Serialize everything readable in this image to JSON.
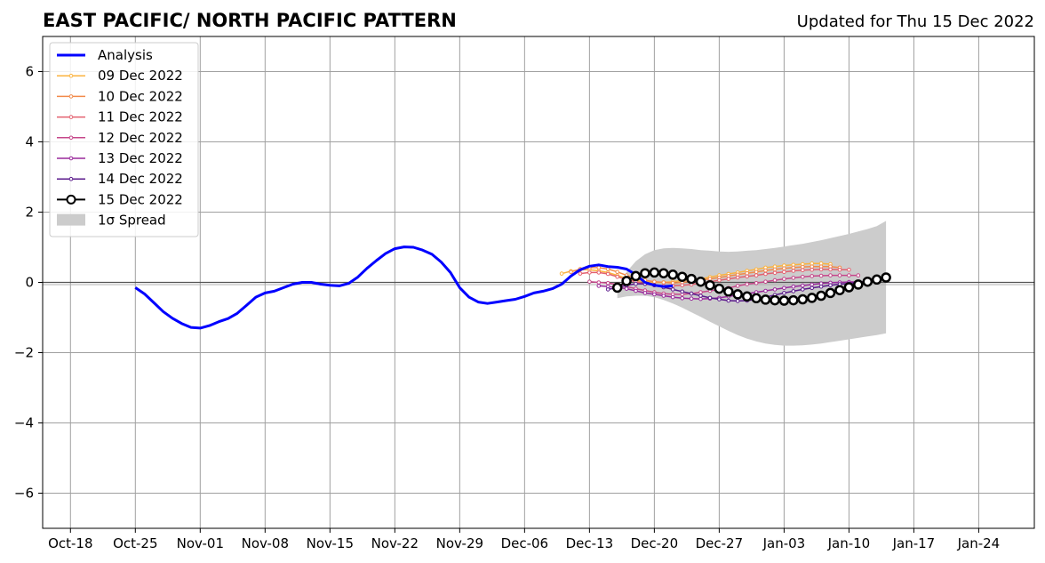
{
  "chart_data": {
    "type": "line",
    "title": "EAST PACIFIC/ NORTH PACIFIC PATTERN",
    "subtitle": "Updated for Thu 15 Dec 2022",
    "xlabel": "",
    "ylabel": "",
    "xlim": [
      "2022-10-15",
      "2023-01-30"
    ],
    "ylim": [
      -7,
      7
    ],
    "grid": true,
    "legend_position": "upper-left",
    "x_ticks": [
      "2022-10-18",
      "2022-10-25",
      "2022-11-01",
      "2022-11-08",
      "2022-11-15",
      "2022-11-22",
      "2022-11-29",
      "2022-12-06",
      "2022-12-13",
      "2022-12-20",
      "2022-12-27",
      "2023-01-03",
      "2023-01-10",
      "2023-01-17",
      "2023-01-24"
    ],
    "x_tick_labels": [
      "Oct-18",
      "Oct-25",
      "Nov-01",
      "Nov-08",
      "Nov-15",
      "Nov-22",
      "Nov-29",
      "Dec-06",
      "Dec-13",
      "Dec-20",
      "Dec-27",
      "Jan-03",
      "Jan-10",
      "Jan-17",
      "Jan-24"
    ],
    "y_ticks": [
      -6,
      -4,
      -2,
      0,
      2,
      4,
      6
    ],
    "y_tick_labels": [
      "−6",
      "−4",
      "−2",
      "0",
      "2",
      "4",
      "6"
    ],
    "series": [
      {
        "name": "Analysis",
        "color": "#0000ff",
        "style": "analysis",
        "start": "2022-10-25",
        "values": [
          -0.15,
          -0.33,
          -0.58,
          -0.83,
          -1.02,
          -1.17,
          -1.28,
          -1.3,
          -1.23,
          -1.12,
          -1.03,
          -0.88,
          -0.65,
          -0.42,
          -0.3,
          -0.25,
          -0.15,
          -0.05,
          0.0,
          0.0,
          -0.05,
          -0.08,
          -0.1,
          -0.03,
          0.15,
          0.4,
          0.62,
          0.82,
          0.96,
          1.01,
          1.0,
          0.92,
          0.8,
          0.58,
          0.28,
          -0.15,
          -0.42,
          -0.56,
          -0.6,
          -0.56,
          -0.52,
          -0.48,
          -0.4,
          -0.3,
          -0.25,
          -0.18,
          -0.05,
          0.18,
          0.36,
          0.46,
          0.5,
          0.45,
          0.43,
          0.38,
          0.22,
          0.0,
          -0.08,
          -0.12,
          -0.1
        ]
      },
      {
        "name": "09 Dec 2022",
        "color": "#fbb33f",
        "style": "forecast",
        "start": "2022-12-10",
        "values": [
          0.25,
          0.32,
          0.36,
          0.36,
          0.33,
          0.28,
          0.2,
          0.12,
          0.06,
          0.02,
          0.0,
          0.0,
          0.02,
          0.05,
          0.08,
          0.1,
          0.15,
          0.2,
          0.24,
          0.28,
          0.33,
          0.37,
          0.42,
          0.45,
          0.48,
          0.5,
          0.52,
          0.54,
          0.54,
          0.52
        ]
      },
      {
        "name": "10 Dec 2022",
        "color": "#f28a4a",
        "style": "forecast",
        "start": "2022-12-11",
        "values": [
          0.3,
          0.38,
          0.42,
          0.42,
          0.38,
          0.3,
          0.2,
          0.12,
          0.06,
          0.02,
          0.0,
          -0.02,
          0.0,
          0.03,
          0.07,
          0.1,
          0.14,
          0.18,
          0.22,
          0.26,
          0.3,
          0.34,
          0.37,
          0.4,
          0.42,
          0.44,
          0.45,
          0.45,
          0.45,
          0.42
        ]
      },
      {
        "name": "11 Dec 2022",
        "color": "#e3606f",
        "style": "forecast",
        "start": "2022-12-12",
        "values": [
          0.25,
          0.28,
          0.28,
          0.24,
          0.16,
          0.08,
          0.02,
          -0.04,
          -0.08,
          -0.1,
          -0.1,
          -0.08,
          -0.06,
          -0.02,
          0.02,
          0.06,
          0.1,
          0.14,
          0.17,
          0.2,
          0.24,
          0.27,
          0.3,
          0.33,
          0.35,
          0.36,
          0.37,
          0.37,
          0.36,
          0.36
        ]
      },
      {
        "name": "12 Dec 2022",
        "color": "#c6478a",
        "style": "forecast",
        "start": "2022-12-13",
        "values": [
          0.02,
          0.0,
          -0.02,
          -0.06,
          -0.12,
          -0.18,
          -0.23,
          -0.28,
          -0.32,
          -0.34,
          -0.34,
          -0.32,
          -0.28,
          -0.24,
          -0.2,
          -0.16,
          -0.1,
          -0.05,
          -0.02,
          0.02,
          0.06,
          0.1,
          0.13,
          0.16,
          0.18,
          0.19,
          0.2,
          0.2,
          0.2,
          0.2
        ]
      },
      {
        "name": "13 Dec 2022",
        "color": "#9a2a9c",
        "style": "forecast",
        "start": "2022-12-14",
        "values": [
          -0.1,
          -0.12,
          -0.14,
          -0.18,
          -0.24,
          -0.3,
          -0.34,
          -0.38,
          -0.42,
          -0.45,
          -0.46,
          -0.47,
          -0.46,
          -0.44,
          -0.4,
          -0.36,
          -0.32,
          -0.28,
          -0.24,
          -0.2,
          -0.16,
          -0.12,
          -0.09,
          -0.06,
          -0.03,
          -0.01,
          0.0,
          0.01,
          0.02,
          0.02
        ]
      },
      {
        "name": "14 Dec 2022",
        "color": "#5b1b8c",
        "style": "forecast",
        "start": "2022-12-15",
        "values": [
          -0.2,
          -0.15,
          -0.08,
          -0.04,
          -0.04,
          -0.08,
          -0.14,
          -0.2,
          -0.26,
          -0.32,
          -0.38,
          -0.44,
          -0.48,
          -0.52,
          -0.53,
          -0.52,
          -0.48,
          -0.42,
          -0.36,
          -0.3,
          -0.25,
          -0.2,
          -0.16,
          -0.12,
          -0.08,
          -0.05,
          -0.03,
          0.0,
          0.02,
          0.04
        ]
      },
      {
        "name": "15 Dec 2022",
        "color": "#000000",
        "style": "current",
        "start": "2022-12-16",
        "values": [
          -0.15,
          0.04,
          0.18,
          0.26,
          0.28,
          0.26,
          0.22,
          0.16,
          0.1,
          0.02,
          -0.08,
          -0.18,
          -0.26,
          -0.34,
          -0.4,
          -0.45,
          -0.49,
          -0.51,
          -0.52,
          -0.51,
          -0.48,
          -0.44,
          -0.38,
          -0.3,
          -0.22,
          -0.14,
          -0.06,
          0.02,
          0.08,
          0.14
        ]
      }
    ],
    "spread": {
      "name": "1σ Spread",
      "color": "#cccccc",
      "start": "2022-12-16",
      "upper": [
        -0.3,
        0.3,
        0.6,
        0.8,
        0.92,
        0.97,
        0.98,
        0.97,
        0.95,
        0.92,
        0.9,
        0.88,
        0.87,
        0.88,
        0.9,
        0.92,
        0.95,
        0.98,
        1.02,
        1.06,
        1.1,
        1.15,
        1.2,
        1.26,
        1.32,
        1.38,
        1.45,
        1.52,
        1.6,
        1.75
      ],
      "lower": [
        -0.45,
        -0.4,
        -0.38,
        -0.38,
        -0.42,
        -0.5,
        -0.6,
        -0.72,
        -0.85,
        -0.98,
        -1.12,
        -1.25,
        -1.38,
        -1.5,
        -1.6,
        -1.68,
        -1.74,
        -1.78,
        -1.8,
        -1.8,
        -1.79,
        -1.77,
        -1.74,
        -1.7,
        -1.66,
        -1.62,
        -1.58,
        -1.54,
        -1.5,
        -1.45
      ]
    }
  }
}
